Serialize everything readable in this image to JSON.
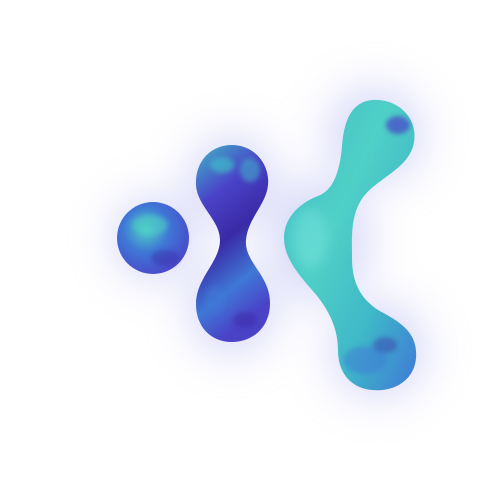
{
  "image": {
    "subject": "abstract-blob-logo",
    "colors": {
      "background": "#ffffff",
      "glow": "#b7b9f2",
      "indigo_deep": "#3a2aa6",
      "indigo": "#4a43c8",
      "blue": "#3f78d6",
      "cyan": "#3fb8c8",
      "teal": "#4fd0c6",
      "highlight": "#7fe7e0"
    }
  }
}
